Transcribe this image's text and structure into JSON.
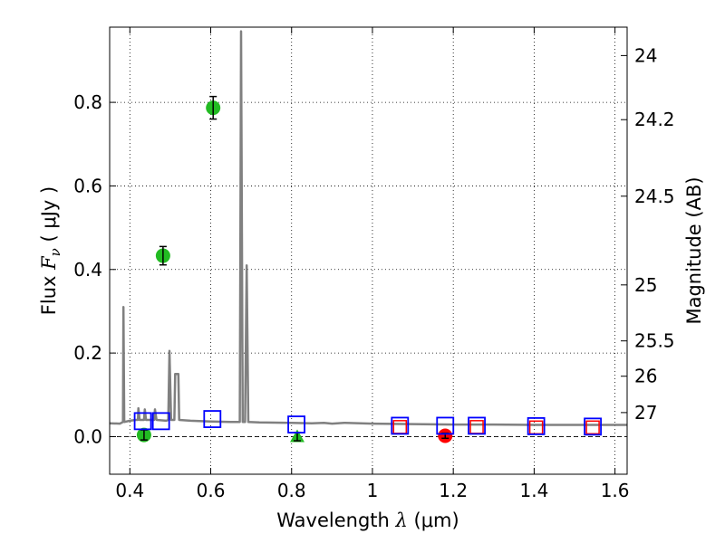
{
  "chart_data": {
    "type": "scatter",
    "xlabel_parts": {
      "prefix": "Wavelength  ",
      "symbol": "λ",
      "unit": " (μm)"
    },
    "ylabel_parts": {
      "prefix": "Flux  ",
      "symbol": "F",
      "subscript": "ν",
      "unit": "  ( μJy )"
    },
    "y2label": "Magnitude (AB)",
    "xlim": [
      0.35,
      1.63
    ],
    "ylim": [
      -0.09,
      0.98
    ],
    "grid": true,
    "x_ticks": [
      {
        "value": 0.4,
        "label": "0.4"
      },
      {
        "value": 0.6,
        "label": "0.6"
      },
      {
        "value": 0.8,
        "label": "0.8"
      },
      {
        "value": 1.0,
        "label": "1"
      },
      {
        "value": 1.2,
        "label": "1.2"
      },
      {
        "value": 1.4,
        "label": "1.4"
      },
      {
        "value": 1.6,
        "label": "1.6"
      }
    ],
    "y_ticks": [
      {
        "value": 0.0,
        "label": "0.0"
      },
      {
        "value": 0.2,
        "label": "0.2"
      },
      {
        "value": 0.4,
        "label": "0.4"
      },
      {
        "value": 0.6,
        "label": "0.6"
      },
      {
        "value": 0.8,
        "label": "0.8"
      }
    ],
    "y2_ticks": [
      {
        "value": 24.0,
        "label": "24"
      },
      {
        "value": 24.2,
        "label": "24.2"
      },
      {
        "value": 24.5,
        "label": "24.5"
      },
      {
        "value": 25.0,
        "label": "25"
      },
      {
        "value": 25.5,
        "label": "25.5"
      },
      {
        "value": 26.0,
        "label": "26"
      },
      {
        "value": 27.0,
        "label": "27"
      }
    ],
    "zero_line": 0.0,
    "series": [
      {
        "type": "line",
        "color": "#808080",
        "points": [
          [
            0.35,
            0.032
          ],
          [
            0.375,
            0.031
          ],
          [
            0.383,
            0.035
          ],
          [
            0.384,
            0.31
          ],
          [
            0.386,
            0.035
          ],
          [
            0.4,
            0.038
          ],
          [
            0.415,
            0.04
          ],
          [
            0.42,
            0.04
          ],
          [
            0.421,
            0.068
          ],
          [
            0.424,
            0.04
          ],
          [
            0.435,
            0.04
          ],
          [
            0.437,
            0.065
          ],
          [
            0.44,
            0.04
          ],
          [
            0.46,
            0.04
          ],
          [
            0.462,
            0.065
          ],
          [
            0.466,
            0.04
          ],
          [
            0.49,
            0.038
          ],
          [
            0.495,
            0.04
          ],
          [
            0.498,
            0.205
          ],
          [
            0.502,
            0.04
          ],
          [
            0.51,
            0.04
          ],
          [
            0.512,
            0.15
          ],
          [
            0.52,
            0.15
          ],
          [
            0.522,
            0.04
          ],
          [
            0.55,
            0.038
          ],
          [
            0.6,
            0.036
          ],
          [
            0.65,
            0.035
          ],
          [
            0.672,
            0.035
          ],
          [
            0.675,
            0.97
          ],
          [
            0.679,
            0.035
          ],
          [
            0.685,
            0.035
          ],
          [
            0.689,
            0.41
          ],
          [
            0.693,
            0.035
          ],
          [
            0.72,
            0.034
          ],
          [
            0.8,
            0.033
          ],
          [
            0.85,
            0.032
          ],
          [
            0.88,
            0.033
          ],
          [
            0.9,
            0.031
          ],
          [
            0.93,
            0.033
          ],
          [
            1.0,
            0.031
          ],
          [
            1.1,
            0.03
          ],
          [
            1.2,
            0.029
          ],
          [
            1.3,
            0.029
          ],
          [
            1.4,
            0.028
          ],
          [
            1.5,
            0.028
          ],
          [
            1.63,
            0.028
          ]
        ]
      },
      {
        "type": "points",
        "marker": "circle",
        "color": "#22bb22",
        "points": [
          {
            "x": 0.435,
            "y": 0.004,
            "err": 0.012
          },
          {
            "x": 0.482,
            "y": 0.433,
            "err": 0.022
          },
          {
            "x": 0.606,
            "y": 0.787,
            "err": 0.027
          }
        ]
      },
      {
        "type": "points",
        "marker": "triangle",
        "color": "#22bb22",
        "points": [
          {
            "x": 0.814,
            "y": 0.0,
            "err": 0.01
          }
        ]
      },
      {
        "type": "points",
        "marker": "circle",
        "color": "#ff0000",
        "points": [
          {
            "x": 1.18,
            "y": 0.002,
            "err": 0.006
          }
        ]
      },
      {
        "type": "points",
        "marker": "square",
        "color": "#ff0000",
        "points": [
          {
            "x": 1.068,
            "y": 0.023
          },
          {
            "x": 1.258,
            "y": 0.023
          },
          {
            "x": 1.405,
            "y": 0.022
          },
          {
            "x": 1.545,
            "y": 0.022
          }
        ]
      },
      {
        "type": "points",
        "marker": "open-square",
        "color": "#0000ff",
        "points": [
          {
            "x": 0.432,
            "y": 0.037
          },
          {
            "x": 0.477,
            "y": 0.037
          },
          {
            "x": 0.604,
            "y": 0.042
          },
          {
            "x": 0.812,
            "y": 0.029
          },
          {
            "x": 1.068,
            "y": 0.026
          },
          {
            "x": 1.18,
            "y": 0.026
          },
          {
            "x": 1.258,
            "y": 0.026
          },
          {
            "x": 1.405,
            "y": 0.025
          },
          {
            "x": 1.545,
            "y": 0.024
          }
        ]
      }
    ]
  }
}
